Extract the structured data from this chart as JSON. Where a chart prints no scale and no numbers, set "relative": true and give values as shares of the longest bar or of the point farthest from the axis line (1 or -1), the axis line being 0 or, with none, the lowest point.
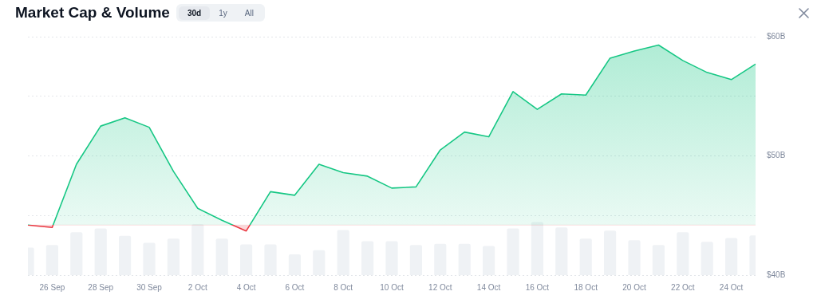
{
  "chart_data": [
    {
      "type": "area",
      "title": "Market Cap & Volume",
      "annotations": [
        "30d",
        "1y",
        "All"
      ],
      "categories": [
        null,
        "26 Sep",
        null,
        "28 Sep",
        null,
        "30 Sep",
        null,
        "2 Oct",
        null,
        "4 Oct",
        null,
        "6 Oct",
        null,
        "8 Oct",
        null,
        "10 Oct",
        null,
        "12 Oct",
        null,
        "14 Oct",
        null,
        "16 Oct",
        null,
        "18 Oct",
        null,
        "20 Oct",
        null,
        "22 Oct",
        null,
        "24 Oct",
        null
      ],
      "series": [
        {
          "color": "#16c784",
          "values": [
            44.2,
            44.0,
            49.3,
            52.5,
            53.2,
            52.4,
            48.7,
            45.6,
            44.6,
            43.7,
            47.0,
            46.7,
            49.3,
            48.6,
            48.3,
            47.3,
            47.4,
            50.5,
            52.0,
            51.6,
            55.4,
            53.9,
            55.2,
            55.1,
            58.2,
            58.8,
            59.3,
            58.0,
            57.0,
            56.4,
            57.7
          ]
        }
      ],
      "ref_lines": [
        {
          "axis": "y",
          "value": 44.2,
          "color": "#ea3943"
        }
      ],
      "ylim": [
        40,
        60
      ],
      "yticks": [
        {
          "value": 40,
          "label": "$40B"
        },
        {
          "value": 45,
          "label": null
        },
        {
          "value": 50,
          "label": "$50B"
        },
        {
          "value": 55,
          "label": null
        },
        {
          "value": 60,
          "label": "$60B"
        }
      ],
      "grid": "y",
      "legend": false,
      "marker": "none"
    },
    {
      "type": "bar",
      "relative": true,
      "tick_labels": false,
      "categories": [
        null,
        null,
        null,
        null,
        null,
        null,
        null,
        null,
        null,
        null,
        null,
        null,
        null,
        null,
        null,
        null,
        null,
        null,
        null,
        null,
        null,
        null,
        null,
        null,
        null,
        null,
        null,
        null,
        null,
        null,
        null
      ],
      "series": [
        {
          "color": "#eff2f5",
          "values": [
            0.52,
            0.57,
            0.81,
            0.88,
            0.74,
            0.61,
            0.69,
            0.96,
            0.69,
            0.58,
            0.58,
            0.39,
            0.47,
            0.85,
            0.64,
            0.64,
            0.57,
            0.59,
            0.59,
            0.55,
            0.88,
            1,
            0.9,
            0.69,
            0.84,
            0.66,
            0.57,
            0.81,
            0.63,
            0.7,
            0.75
          ]
        }
      ],
      "legend": false
    }
  ]
}
